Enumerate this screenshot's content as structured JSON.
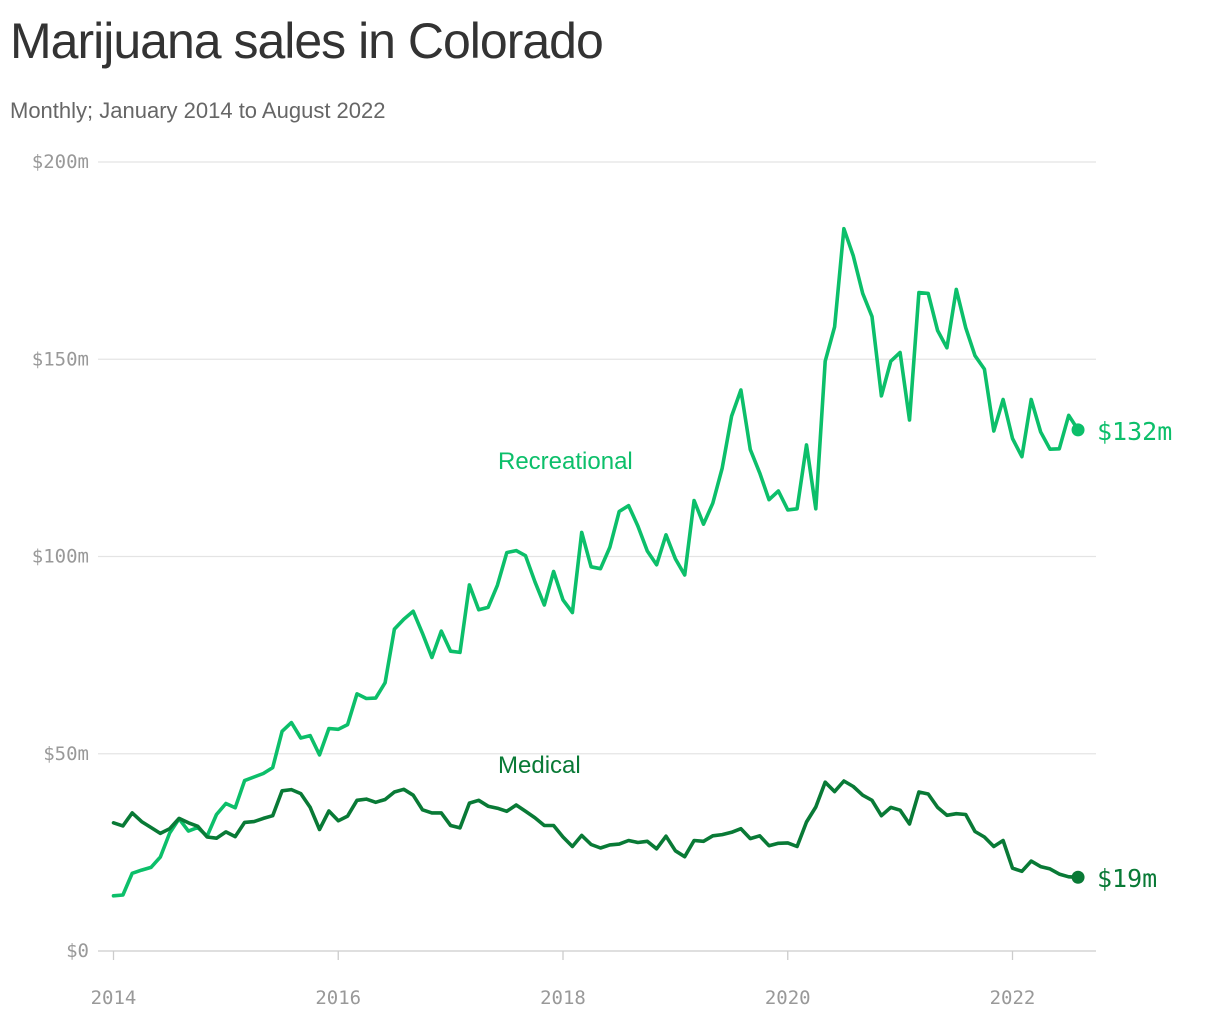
{
  "title": "Marijuana sales in Colorado",
  "subtitle": "Monthly; January 2014 to August 2022",
  "chart_data": {
    "type": "line",
    "title": "Marijuana sales in Colorado",
    "subtitle": "Monthly; January 2014 to August 2022",
    "x_start": "2014-01",
    "x_end": "2022-08",
    "xlim": [
      2014.0,
      2022.75
    ],
    "ylim": [
      0,
      200
    ],
    "y_unit": "$m",
    "x_ticks": [
      {
        "value": 2014,
        "label": "2014"
      },
      {
        "value": 2016,
        "label": "2016"
      },
      {
        "value": 2018,
        "label": "2018"
      },
      {
        "value": 2020,
        "label": "2020"
      },
      {
        "value": 2022,
        "label": "2022"
      }
    ],
    "y_ticks": [
      {
        "value": 0,
        "label": "$0"
      },
      {
        "value": 50,
        "label": "$50m"
      },
      {
        "value": 100,
        "label": "$100m"
      },
      {
        "value": 150,
        "label": "$150m"
      },
      {
        "value": 200,
        "label": "$200m"
      }
    ],
    "grid": true,
    "series": [
      {
        "name": "Recreational",
        "color": "#0cbf6a",
        "end_label": "$132m",
        "values": [
          14.0,
          14.2,
          19.7,
          20.5,
          21.2,
          23.8,
          29.9,
          33.5,
          30.4,
          31.3,
          29.1,
          34.6,
          37.4,
          36.3,
          43.2,
          44.1,
          45.0,
          46.5,
          55.7,
          57.9,
          54.0,
          54.6,
          49.7,
          56.4,
          56.2,
          57.4,
          65.2,
          64.0,
          64.1,
          68.0,
          81.6,
          84.1,
          86.1,
          80.5,
          74.4,
          81.1,
          76.0,
          75.7,
          92.8,
          86.5,
          87.1,
          92.7,
          101.0,
          101.5,
          100.2,
          93.6,
          87.7,
          96.2,
          89.0,
          85.8,
          106.1,
          97.4,
          96.9,
          102.3,
          111.4,
          112.9,
          107.7,
          101.4,
          97.9,
          105.5,
          99.4,
          95.3,
          114.2,
          108.2,
          113.5,
          122.4,
          135.6,
          142.2,
          127.1,
          121.2,
          114.4,
          116.6,
          111.8,
          112.1,
          128.3,
          112.1,
          149.5,
          158.2,
          183.1,
          176.2,
          166.7,
          160.8,
          140.7,
          149.5,
          151.7,
          134.6,
          166.9,
          166.7,
          157.3,
          152.9,
          167.7,
          158.0,
          150.9,
          147.5,
          131.8,
          139.8,
          129.9,
          125.3,
          139.8,
          131.6,
          127.2,
          127.3,
          135.8,
          132.1
        ]
      },
      {
        "name": "Medical",
        "color": "#097a36",
        "end_label": "$19m",
        "values": [
          32.5,
          31.7,
          35.0,
          32.8,
          31.3,
          29.8,
          31.0,
          33.6,
          32.5,
          31.6,
          28.9,
          28.6,
          30.2,
          29.0,
          32.6,
          32.8,
          33.6,
          34.3,
          40.6,
          40.9,
          39.9,
          36.4,
          30.8,
          35.5,
          33.0,
          34.2,
          38.2,
          38.5,
          37.7,
          38.4,
          40.3,
          41.0,
          39.5,
          35.8,
          35.0,
          35.0,
          31.8,
          31.2,
          37.5,
          38.2,
          36.7,
          36.2,
          35.4,
          37.0,
          35.4,
          33.8,
          31.8,
          31.8,
          28.9,
          26.5,
          29.3,
          27.0,
          26.1,
          26.9,
          27.1,
          28.0,
          27.5,
          27.8,
          25.9,
          29.1,
          25.4,
          23.9,
          28.0,
          27.8,
          29.2,
          29.5,
          30.1,
          31.0,
          28.5,
          29.2,
          26.7,
          27.3,
          27.4,
          26.5,
          32.7,
          36.5,
          42.8,
          40.4,
          43.1,
          41.7,
          39.5,
          38.2,
          34.3,
          36.4,
          35.7,
          32.2,
          40.3,
          39.8,
          36.4,
          34.4,
          34.8,
          34.6,
          30.3,
          28.9,
          26.5,
          28.0,
          21.0,
          20.2,
          22.8,
          21.4,
          20.8,
          19.5,
          18.8,
          18.7
        ]
      }
    ]
  }
}
